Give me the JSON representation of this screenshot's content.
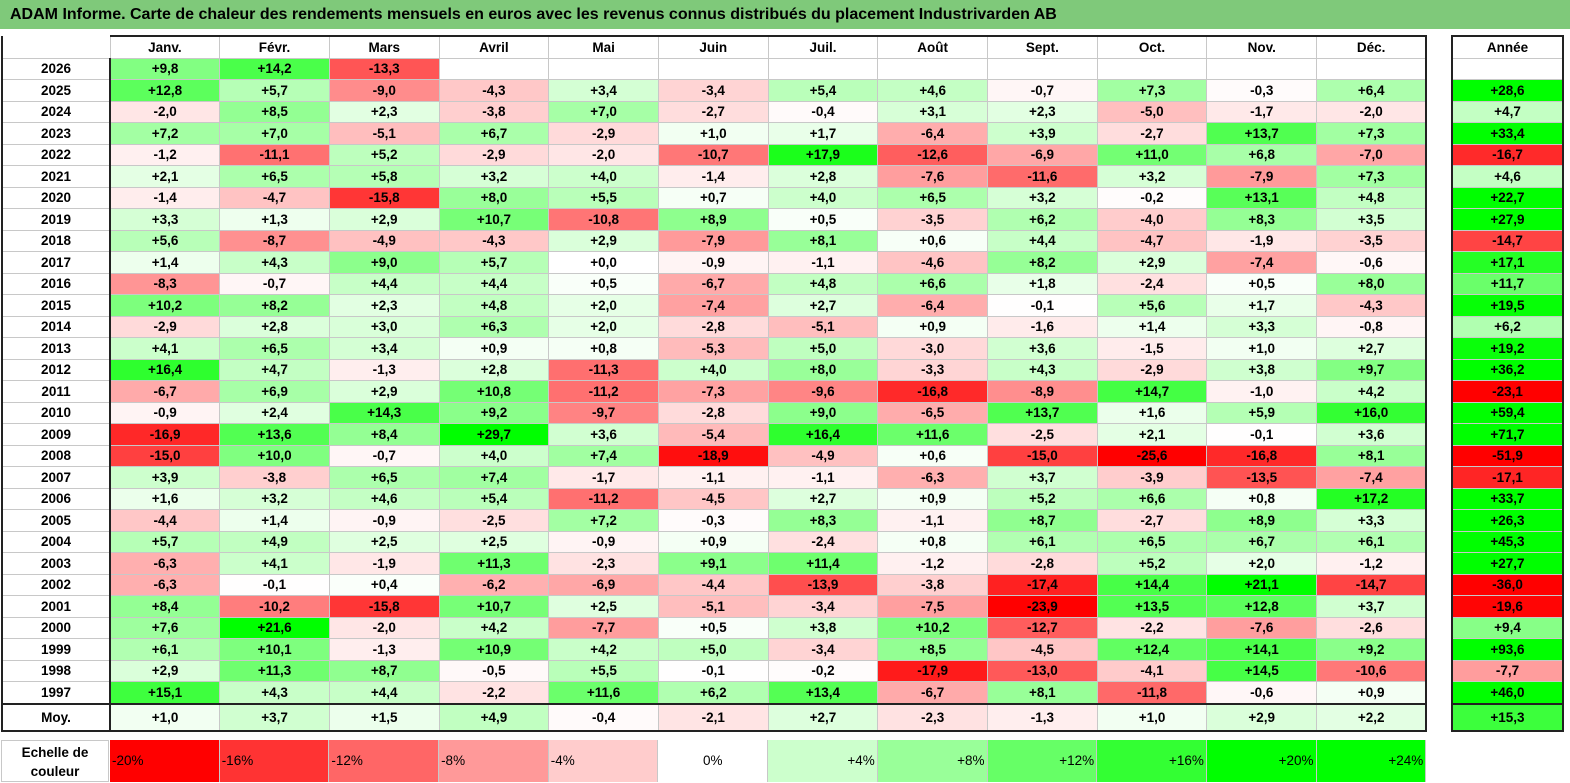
{
  "title": "ADAM Informe. Carte de chaleur des rendements mensuels en euros avec les revenus connus distribués du placement Industrivarden AB",
  "chart_data": {
    "type": "heatmap",
    "title": "ADAM Informe. Carte de chaleur des rendements mensuels en euros avec les revenus connus distribués du placement Industrivarden AB",
    "columns": [
      "Janv.",
      "Févr.",
      "Mars",
      "Avril",
      "Mai",
      "Juin",
      "Juil.",
      "Août",
      "Sept.",
      "Oct.",
      "Nov.",
      "Déc."
    ],
    "year_column_label": "Année",
    "rows": [
      {
        "label": "2026",
        "values": [
          "+9,8",
          "+14,2",
          "-13,3",
          "",
          "",
          "",
          "",
          "",
          "",
          "",
          "",
          ""
        ],
        "year": ""
      },
      {
        "label": "2025",
        "values": [
          "+12,8",
          "+5,7",
          "-9,0",
          "-4,3",
          "+3,4",
          "-3,4",
          "+5,4",
          "+4,6",
          "-0,7",
          "+7,3",
          "-0,3",
          "+6,4"
        ],
        "year": "+28,6"
      },
      {
        "label": "2024",
        "values": [
          "-2,0",
          "+8,5",
          "+2,3",
          "-3,8",
          "+7,0",
          "-2,7",
          "-0,4",
          "+3,1",
          "+2,3",
          "-5,0",
          "-1,7",
          "-2,0"
        ],
        "year": "+4,7"
      },
      {
        "label": "2023",
        "values": [
          "+7,2",
          "+7,0",
          "-5,1",
          "+6,7",
          "-2,9",
          "+1,0",
          "+1,7",
          "-6,4",
          "+3,9",
          "-2,7",
          "+13,7",
          "+7,3"
        ],
        "year": "+33,4"
      },
      {
        "label": "2022",
        "values": [
          "-1,2",
          "-11,1",
          "+5,2",
          "-2,9",
          "-2,0",
          "-10,7",
          "+17,9",
          "-12,6",
          "-6,9",
          "+11,0",
          "+6,8",
          "-7,0"
        ],
        "year": "-16,7"
      },
      {
        "label": "2021",
        "values": [
          "+2,1",
          "+6,5",
          "+5,8",
          "+3,2",
          "+4,0",
          "-1,4",
          "+2,8",
          "-7,6",
          "-11,6",
          "+3,2",
          "-7,9",
          "+7,3"
        ],
        "year": "+4,6"
      },
      {
        "label": "2020",
        "values": [
          "-1,4",
          "-4,7",
          "-15,8",
          "+8,0",
          "+5,5",
          "+0,7",
          "+4,0",
          "+6,5",
          "+3,2",
          "-0,2",
          "+13,1",
          "+4,8"
        ],
        "year": "+22,7"
      },
      {
        "label": "2019",
        "values": [
          "+3,3",
          "+1,3",
          "+2,9",
          "+10,7",
          "-10,8",
          "+8,9",
          "+0,5",
          "-3,5",
          "+6,2",
          "-4,0",
          "+8,3",
          "+3,5"
        ],
        "year": "+27,9"
      },
      {
        "label": "2018",
        "values": [
          "+5,6",
          "-8,7",
          "-4,9",
          "-4,3",
          "+2,9",
          "-7,9",
          "+8,1",
          "+0,6",
          "+4,4",
          "-4,7",
          "-1,9",
          "-3,5"
        ],
        "year": "-14,7"
      },
      {
        "label": "2017",
        "values": [
          "+1,4",
          "+4,3",
          "+9,0",
          "+5,7",
          "+0,0",
          "-0,9",
          "-1,1",
          "-4,6",
          "+8,2",
          "+2,9",
          "-7,4",
          "-0,6"
        ],
        "year": "+17,1"
      },
      {
        "label": "2016",
        "values": [
          "-8,3",
          "-0,7",
          "+4,4",
          "+4,4",
          "+0,5",
          "-6,7",
          "+4,8",
          "+6,6",
          "+1,8",
          "-2,4",
          "+0,5",
          "+8,0"
        ],
        "year": "+11,7"
      },
      {
        "label": "2015",
        "values": [
          "+10,2",
          "+8,2",
          "+2,3",
          "+4,8",
          "+2,0",
          "-7,4",
          "+2,7",
          "-6,4",
          "-0,1",
          "+5,6",
          "+1,7",
          "-4,3"
        ],
        "year": "+19,5"
      },
      {
        "label": "2014",
        "values": [
          "-2,9",
          "+2,8",
          "+3,0",
          "+6,3",
          "+2,0",
          "-2,8",
          "-5,1",
          "+0,9",
          "-1,6",
          "+1,4",
          "+3,3",
          "-0,8"
        ],
        "year": "+6,2"
      },
      {
        "label": "2013",
        "values": [
          "+4,1",
          "+6,5",
          "+3,4",
          "+0,9",
          "+0,8",
          "-5,3",
          "+5,0",
          "-3,0",
          "+3,6",
          "-1,5",
          "+1,0",
          "+2,7"
        ],
        "year": "+19,2"
      },
      {
        "label": "2012",
        "values": [
          "+16,4",
          "+4,7",
          "-1,3",
          "+2,8",
          "-11,3",
          "+4,0",
          "+8,0",
          "-3,3",
          "+4,3",
          "-2,9",
          "+3,8",
          "+9,7"
        ],
        "year": "+36,2"
      },
      {
        "label": "2011",
        "values": [
          "-6,7",
          "+6,9",
          "+2,9",
          "+10,8",
          "-11,2",
          "-7,3",
          "-9,6",
          "-16,8",
          "-8,9",
          "+14,7",
          "-1,0",
          "+4,2"
        ],
        "year": "-23,1"
      },
      {
        "label": "2010",
        "values": [
          "-0,9",
          "+2,4",
          "+14,3",
          "+9,2",
          "-9,7",
          "-2,8",
          "+9,0",
          "-6,5",
          "+13,7",
          "+1,6",
          "+5,9",
          "+16,0"
        ],
        "year": "+59,4"
      },
      {
        "label": "2009",
        "values": [
          "-16,9",
          "+13,6",
          "+8,4",
          "+29,7",
          "+3,6",
          "-5,4",
          "+16,4",
          "+11,6",
          "-2,5",
          "+2,1",
          "-0,1",
          "+3,6"
        ],
        "year": "+71,7"
      },
      {
        "label": "2008",
        "values": [
          "-15,0",
          "+10,0",
          "-0,7",
          "+4,0",
          "+7,4",
          "-18,9",
          "-4,9",
          "+0,6",
          "-15,0",
          "-25,6",
          "-16,8",
          "+8,1"
        ],
        "year": "-51,9"
      },
      {
        "label": "2007",
        "values": [
          "+3,9",
          "-3,8",
          "+6,5",
          "+7,4",
          "-1,7",
          "-1,1",
          "-1,1",
          "-6,3",
          "+3,7",
          "-3,9",
          "-13,5",
          "-7,4"
        ],
        "year": "-17,1"
      },
      {
        "label": "2006",
        "values": [
          "+1,6",
          "+3,2",
          "+4,6",
          "+5,4",
          "-11,2",
          "-4,5",
          "+2,7",
          "+0,9",
          "+5,2",
          "+6,6",
          "+0,8",
          "+17,2"
        ],
        "year": "+33,7"
      },
      {
        "label": "2005",
        "values": [
          "-4,4",
          "+1,4",
          "-0,9",
          "-2,5",
          "+7,2",
          "-0,3",
          "+8,3",
          "-1,1",
          "+8,7",
          "-2,7",
          "+8,9",
          "+3,3"
        ],
        "year": "+26,3"
      },
      {
        "label": "2004",
        "values": [
          "+5,7",
          "+4,9",
          "+2,5",
          "+2,5",
          "-0,9",
          "+0,9",
          "-2,4",
          "+0,8",
          "+6,1",
          "+6,5",
          "+6,7",
          "+6,1"
        ],
        "year": "+45,3"
      },
      {
        "label": "2003",
        "values": [
          "-6,3",
          "+4,1",
          "-1,9",
          "+11,3",
          "-2,3",
          "+9,1",
          "+11,4",
          "-1,2",
          "-2,8",
          "+5,2",
          "+2,0",
          "-1,2"
        ],
        "year": "+27,7"
      },
      {
        "label": "2002",
        "values": [
          "-6,3",
          "-0,1",
          "+0,4",
          "-6,2",
          "-6,9",
          "-4,4",
          "-13,9",
          "-3,8",
          "-17,4",
          "+14,4",
          "+21,1",
          "-14,7"
        ],
        "year": "-36,0"
      },
      {
        "label": "2001",
        "values": [
          "+8,4",
          "-10,2",
          "-15,8",
          "+10,7",
          "+2,5",
          "-5,1",
          "-3,4",
          "-7,5",
          "-23,9",
          "+13,5",
          "+12,8",
          "+3,7"
        ],
        "year": "-19,6"
      },
      {
        "label": "2000",
        "values": [
          "+7,6",
          "+21,6",
          "-2,0",
          "+4,2",
          "-7,7",
          "+0,5",
          "+3,8",
          "+10,2",
          "-12,7",
          "-2,2",
          "-7,6",
          "-2,6"
        ],
        "year": "+9,4"
      },
      {
        "label": "1999",
        "values": [
          "+6,1",
          "+10,1",
          "-1,3",
          "+10,9",
          "+4,2",
          "+5,0",
          "-3,4",
          "+8,5",
          "-4,5",
          "+12,4",
          "+14,1",
          "+9,2"
        ],
        "year": "+93,6"
      },
      {
        "label": "1998",
        "values": [
          "+2,9",
          "+11,3",
          "+8,7",
          "-0,5",
          "+5,5",
          "-0,1",
          "-0,2",
          "-17,9",
          "-13,0",
          "-4,1",
          "+14,5",
          "-10,6"
        ],
        "year": "-7,7"
      },
      {
        "label": "1997",
        "values": [
          "+15,1",
          "+4,3",
          "+4,4",
          "-2,2",
          "+11,6",
          "+6,2",
          "+13,4",
          "-6,7",
          "+8,1",
          "-11,8",
          "-0,6",
          "+0,9"
        ],
        "year": "+46,0"
      }
    ],
    "average": {
      "label": "Moy.",
      "values": [
        "+1,0",
        "+3,7",
        "+1,5",
        "+4,9",
        "-0,4",
        "-2,1",
        "+2,7",
        "-2,3",
        "-1,3",
        "+1,0",
        "+2,9",
        "+2,2"
      ],
      "year": "+15,3"
    },
    "color_scale": {
      "label": "Echelle de couleur",
      "steps": [
        "-20%",
        "-16%",
        "-12%",
        "-8%",
        "-4%",
        "0%",
        "+4%",
        "+8%",
        "+12%",
        "+16%",
        "+20%",
        "+24%"
      ],
      "negative_color": "#ff0000",
      "positive_color": "#00ff00",
      "neutral_color": "#ffffff"
    }
  }
}
